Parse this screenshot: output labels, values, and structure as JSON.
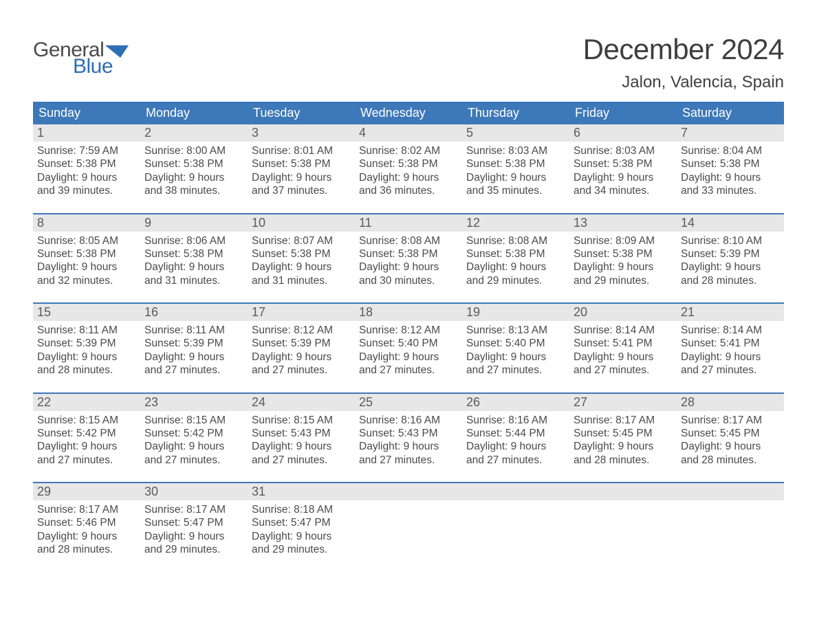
{
  "logo": {
    "text_general": "General",
    "text_blue": "Blue",
    "flag_color": "#2d6fb5"
  },
  "header": {
    "month_title": "December 2024",
    "location": "Jalon, Valencia, Spain"
  },
  "colors": {
    "header_bar": "#3d78b8",
    "week_border": "#3d78b8",
    "day_number_bg": "#e7e7e7",
    "text_primary": "#4a4a4a",
    "text_title": "#3f3f3f",
    "logo_blue": "#2d6fb5",
    "background": "#ffffff"
  },
  "weekdays": [
    "Sunday",
    "Monday",
    "Tuesday",
    "Wednesday",
    "Thursday",
    "Friday",
    "Saturday"
  ],
  "weeks": [
    [
      {
        "num": "1",
        "sunrise": "Sunrise: 7:59 AM",
        "sunset": "Sunset: 5:38 PM",
        "daylight": "Daylight: 9 hours and 39 minutes."
      },
      {
        "num": "2",
        "sunrise": "Sunrise: 8:00 AM",
        "sunset": "Sunset: 5:38 PM",
        "daylight": "Daylight: 9 hours and 38 minutes."
      },
      {
        "num": "3",
        "sunrise": "Sunrise: 8:01 AM",
        "sunset": "Sunset: 5:38 PM",
        "daylight": "Daylight: 9 hours and 37 minutes."
      },
      {
        "num": "4",
        "sunrise": "Sunrise: 8:02 AM",
        "sunset": "Sunset: 5:38 PM",
        "daylight": "Daylight: 9 hours and 36 minutes."
      },
      {
        "num": "5",
        "sunrise": "Sunrise: 8:03 AM",
        "sunset": "Sunset: 5:38 PM",
        "daylight": "Daylight: 9 hours and 35 minutes."
      },
      {
        "num": "6",
        "sunrise": "Sunrise: 8:03 AM",
        "sunset": "Sunset: 5:38 PM",
        "daylight": "Daylight: 9 hours and 34 minutes."
      },
      {
        "num": "7",
        "sunrise": "Sunrise: 8:04 AM",
        "sunset": "Sunset: 5:38 PM",
        "daylight": "Daylight: 9 hours and 33 minutes."
      }
    ],
    [
      {
        "num": "8",
        "sunrise": "Sunrise: 8:05 AM",
        "sunset": "Sunset: 5:38 PM",
        "daylight": "Daylight: 9 hours and 32 minutes."
      },
      {
        "num": "9",
        "sunrise": "Sunrise: 8:06 AM",
        "sunset": "Sunset: 5:38 PM",
        "daylight": "Daylight: 9 hours and 31 minutes."
      },
      {
        "num": "10",
        "sunrise": "Sunrise: 8:07 AM",
        "sunset": "Sunset: 5:38 PM",
        "daylight": "Daylight: 9 hours and 31 minutes."
      },
      {
        "num": "11",
        "sunrise": "Sunrise: 8:08 AM",
        "sunset": "Sunset: 5:38 PM",
        "daylight": "Daylight: 9 hours and 30 minutes."
      },
      {
        "num": "12",
        "sunrise": "Sunrise: 8:08 AM",
        "sunset": "Sunset: 5:38 PM",
        "daylight": "Daylight: 9 hours and 29 minutes."
      },
      {
        "num": "13",
        "sunrise": "Sunrise: 8:09 AM",
        "sunset": "Sunset: 5:38 PM",
        "daylight": "Daylight: 9 hours and 29 minutes."
      },
      {
        "num": "14",
        "sunrise": "Sunrise: 8:10 AM",
        "sunset": "Sunset: 5:39 PM",
        "daylight": "Daylight: 9 hours and 28 minutes."
      }
    ],
    [
      {
        "num": "15",
        "sunrise": "Sunrise: 8:11 AM",
        "sunset": "Sunset: 5:39 PM",
        "daylight": "Daylight: 9 hours and 28 minutes."
      },
      {
        "num": "16",
        "sunrise": "Sunrise: 8:11 AM",
        "sunset": "Sunset: 5:39 PM",
        "daylight": "Daylight: 9 hours and 27 minutes."
      },
      {
        "num": "17",
        "sunrise": "Sunrise: 8:12 AM",
        "sunset": "Sunset: 5:39 PM",
        "daylight": "Daylight: 9 hours and 27 minutes."
      },
      {
        "num": "18",
        "sunrise": "Sunrise: 8:12 AM",
        "sunset": "Sunset: 5:40 PM",
        "daylight": "Daylight: 9 hours and 27 minutes."
      },
      {
        "num": "19",
        "sunrise": "Sunrise: 8:13 AM",
        "sunset": "Sunset: 5:40 PM",
        "daylight": "Daylight: 9 hours and 27 minutes."
      },
      {
        "num": "20",
        "sunrise": "Sunrise: 8:14 AM",
        "sunset": "Sunset: 5:41 PM",
        "daylight": "Daylight: 9 hours and 27 minutes."
      },
      {
        "num": "21",
        "sunrise": "Sunrise: 8:14 AM",
        "sunset": "Sunset: 5:41 PM",
        "daylight": "Daylight: 9 hours and 27 minutes."
      }
    ],
    [
      {
        "num": "22",
        "sunrise": "Sunrise: 8:15 AM",
        "sunset": "Sunset: 5:42 PM",
        "daylight": "Daylight: 9 hours and 27 minutes."
      },
      {
        "num": "23",
        "sunrise": "Sunrise: 8:15 AM",
        "sunset": "Sunset: 5:42 PM",
        "daylight": "Daylight: 9 hours and 27 minutes."
      },
      {
        "num": "24",
        "sunrise": "Sunrise: 8:15 AM",
        "sunset": "Sunset: 5:43 PM",
        "daylight": "Daylight: 9 hours and 27 minutes."
      },
      {
        "num": "25",
        "sunrise": "Sunrise: 8:16 AM",
        "sunset": "Sunset: 5:43 PM",
        "daylight": "Daylight: 9 hours and 27 minutes."
      },
      {
        "num": "26",
        "sunrise": "Sunrise: 8:16 AM",
        "sunset": "Sunset: 5:44 PM",
        "daylight": "Daylight: 9 hours and 27 minutes."
      },
      {
        "num": "27",
        "sunrise": "Sunrise: 8:17 AM",
        "sunset": "Sunset: 5:45 PM",
        "daylight": "Daylight: 9 hours and 28 minutes."
      },
      {
        "num": "28",
        "sunrise": "Sunrise: 8:17 AM",
        "sunset": "Sunset: 5:45 PM",
        "daylight": "Daylight: 9 hours and 28 minutes."
      }
    ],
    [
      {
        "num": "29",
        "sunrise": "Sunrise: 8:17 AM",
        "sunset": "Sunset: 5:46 PM",
        "daylight": "Daylight: 9 hours and 28 minutes."
      },
      {
        "num": "30",
        "sunrise": "Sunrise: 8:17 AM",
        "sunset": "Sunset: 5:47 PM",
        "daylight": "Daylight: 9 hours and 29 minutes."
      },
      {
        "num": "31",
        "sunrise": "Sunrise: 8:18 AM",
        "sunset": "Sunset: 5:47 PM",
        "daylight": "Daylight: 9 hours and 29 minutes."
      },
      null,
      null,
      null,
      null
    ]
  ]
}
